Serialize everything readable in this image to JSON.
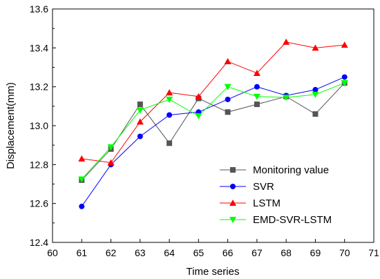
{
  "chart_data": {
    "type": "line",
    "xlabel": "Time series",
    "ylabel": "Displacement(mm)",
    "xlim": [
      60,
      71
    ],
    "ylim": [
      12.4,
      13.6
    ],
    "x_ticks": [
      "60",
      "61",
      "62",
      "63",
      "64",
      "65",
      "66",
      "67",
      "68",
      "69",
      "70",
      "71"
    ],
    "y_ticks": [
      "12.4",
      "12.6",
      "12.8",
      "13.0",
      "13.2",
      "13.4",
      "13.6"
    ],
    "grid": false,
    "legend_position": "bottom-right",
    "x": [
      61,
      62,
      63,
      64,
      65,
      66,
      67,
      68,
      69,
      70
    ],
    "series": [
      {
        "name": "Monitoring value",
        "color": "#555555",
        "marker": "square",
        "values": [
          12.72,
          12.88,
          13.11,
          12.91,
          13.14,
          13.07,
          13.11,
          13.15,
          13.06,
          13.22
        ]
      },
      {
        "name": "SVR",
        "color": "#0000ff",
        "marker": "circle",
        "values": [
          12.585,
          12.8,
          12.945,
          13.055,
          13.07,
          13.135,
          13.2,
          13.155,
          13.185,
          13.25
        ]
      },
      {
        "name": "LSTM",
        "color": "#ff0000",
        "marker": "triangle-up",
        "values": [
          12.83,
          12.81,
          13.02,
          13.17,
          13.15,
          13.33,
          13.27,
          13.43,
          13.4,
          13.415
        ]
      },
      {
        "name": "EMD-SVR-LSTM",
        "color": "#00ff00",
        "marker": "triangle-down",
        "values": [
          12.725,
          12.89,
          13.08,
          13.135,
          13.05,
          13.2,
          13.15,
          13.145,
          13.16,
          13.22
        ]
      }
    ]
  }
}
